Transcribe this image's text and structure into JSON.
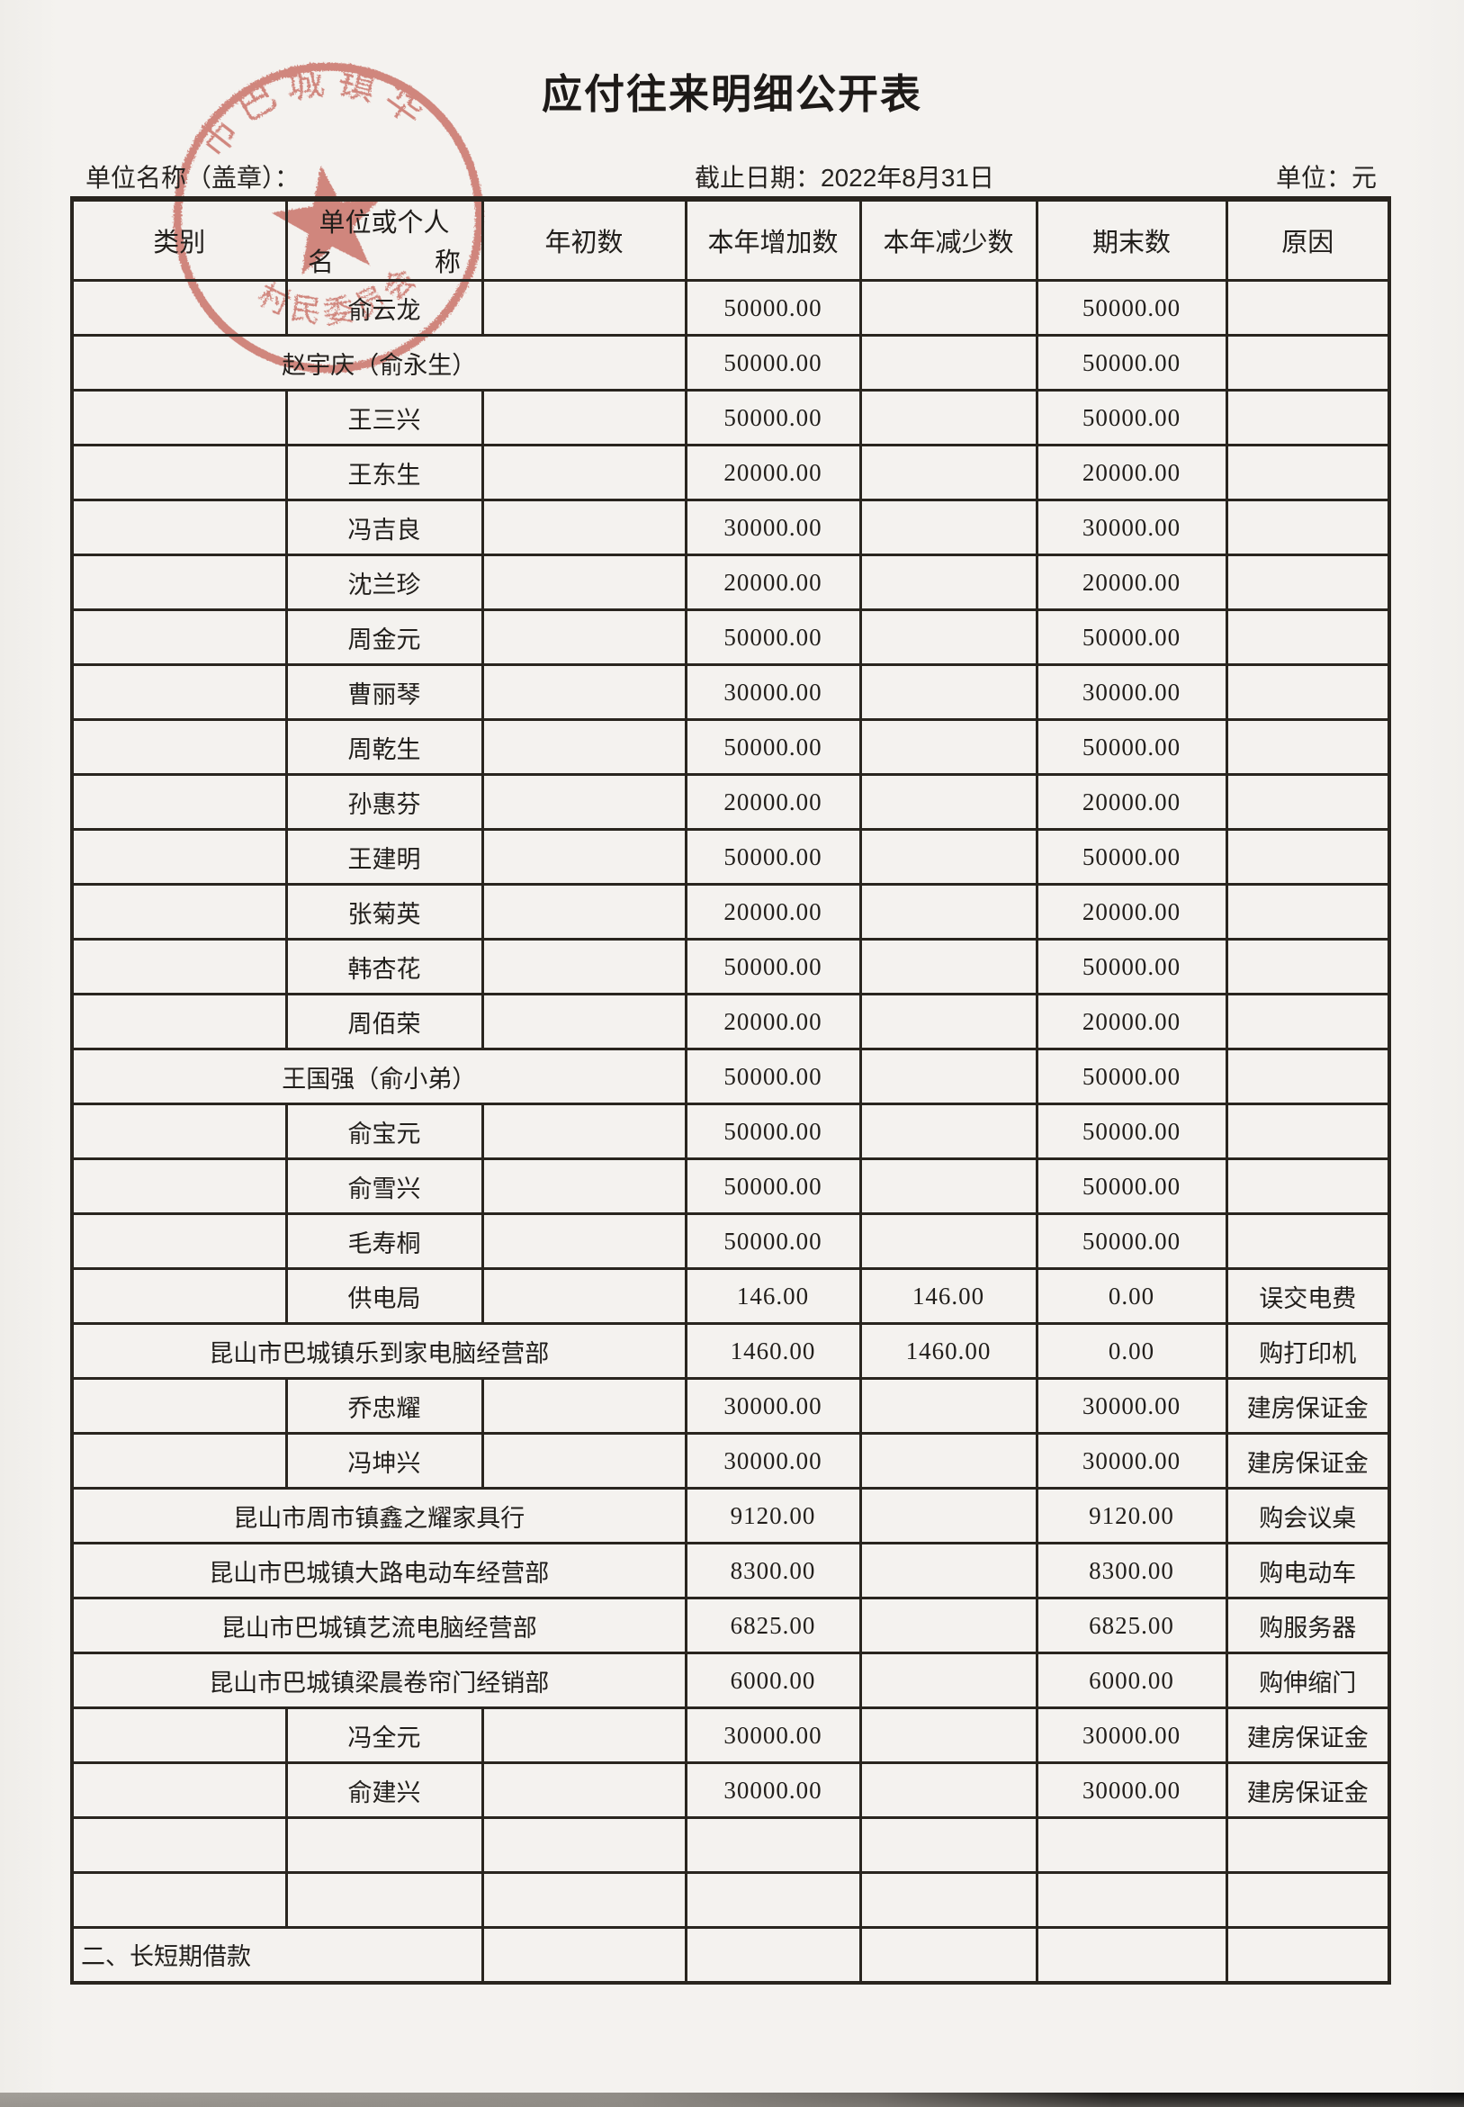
{
  "document": {
    "title": "应付往来明细公开表",
    "unit_name_label": "单位名称（盖章）：",
    "cutoff_date_label": "截止日期：2022年8月31日",
    "currency_label": "单位：元"
  },
  "stamp": {
    "top_arc_text": "市巴城镇华",
    "bottom_arc_text": "村民委员会",
    "color": "#c3473a"
  },
  "table": {
    "header": {
      "col_category": "类别",
      "col_name_line1": "单位或个人",
      "col_name_line2_left": "名",
      "col_name_line2_right": "称",
      "col_begin": "年初数",
      "col_increase": "本年增加数",
      "col_decrease": "本年减少数",
      "col_end": "期末数",
      "col_reason": "原因"
    },
    "rows": [
      {
        "name": "俞云龙",
        "merged": false,
        "begin": "",
        "increase": "50000.00",
        "decrease": "",
        "ending": "50000.00",
        "reason": ""
      },
      {
        "name": "赵宇庆（俞永生）",
        "merged": true,
        "increase": "50000.00",
        "decrease": "",
        "ending": "50000.00",
        "reason": ""
      },
      {
        "name": "王三兴",
        "merged": false,
        "begin": "",
        "increase": "50000.00",
        "decrease": "",
        "ending": "50000.00",
        "reason": ""
      },
      {
        "name": "王东生",
        "merged": false,
        "begin": "",
        "increase": "20000.00",
        "decrease": "",
        "ending": "20000.00",
        "reason": ""
      },
      {
        "name": "冯吉良",
        "merged": false,
        "begin": "",
        "increase": "30000.00",
        "decrease": "",
        "ending": "30000.00",
        "reason": ""
      },
      {
        "name": "沈兰珍",
        "merged": false,
        "begin": "",
        "increase": "20000.00",
        "decrease": "",
        "ending": "20000.00",
        "reason": ""
      },
      {
        "name": "周金元",
        "merged": false,
        "begin": "",
        "increase": "50000.00",
        "decrease": "",
        "ending": "50000.00",
        "reason": ""
      },
      {
        "name": "曹丽琴",
        "merged": false,
        "begin": "",
        "increase": "30000.00",
        "decrease": "",
        "ending": "30000.00",
        "reason": ""
      },
      {
        "name": "周乾生",
        "merged": false,
        "begin": "",
        "increase": "50000.00",
        "decrease": "",
        "ending": "50000.00",
        "reason": ""
      },
      {
        "name": "孙惠芬",
        "merged": false,
        "begin": "",
        "increase": "20000.00",
        "decrease": "",
        "ending": "20000.00",
        "reason": ""
      },
      {
        "name": "王建明",
        "merged": false,
        "begin": "",
        "increase": "50000.00",
        "decrease": "",
        "ending": "50000.00",
        "reason": ""
      },
      {
        "name": "张菊英",
        "merged": false,
        "begin": "",
        "increase": "20000.00",
        "decrease": "",
        "ending": "20000.00",
        "reason": ""
      },
      {
        "name": "韩杏花",
        "merged": false,
        "begin": "",
        "increase": "50000.00",
        "decrease": "",
        "ending": "50000.00",
        "reason": ""
      },
      {
        "name": "周佰荣",
        "merged": false,
        "begin": "",
        "increase": "20000.00",
        "decrease": "",
        "ending": "20000.00",
        "reason": ""
      },
      {
        "name": "王国强（俞小弟）",
        "merged": true,
        "increase": "50000.00",
        "decrease": "",
        "ending": "50000.00",
        "reason": ""
      },
      {
        "name": "俞宝元",
        "merged": false,
        "begin": "",
        "increase": "50000.00",
        "decrease": "",
        "ending": "50000.00",
        "reason": ""
      },
      {
        "name": "俞雪兴",
        "merged": false,
        "begin": "",
        "increase": "50000.00",
        "decrease": "",
        "ending": "50000.00",
        "reason": ""
      },
      {
        "name": "毛寿桐",
        "merged": false,
        "begin": "",
        "increase": "50000.00",
        "decrease": "",
        "ending": "50000.00",
        "reason": ""
      },
      {
        "name": "供电局",
        "merged": false,
        "begin": "",
        "increase": "146.00",
        "decrease": "146.00",
        "ending": "0.00",
        "reason": "误交电费"
      },
      {
        "name": "昆山市巴城镇乐到家电脑经营部",
        "merged": true,
        "increase": "1460.00",
        "decrease": "1460.00",
        "ending": "0.00",
        "reason": "购打印机"
      },
      {
        "name": "乔忠耀",
        "merged": false,
        "begin": "",
        "increase": "30000.00",
        "decrease": "",
        "ending": "30000.00",
        "reason": "建房保证金"
      },
      {
        "name": "冯坤兴",
        "merged": false,
        "begin": "",
        "increase": "30000.00",
        "decrease": "",
        "ending": "30000.00",
        "reason": "建房保证金"
      },
      {
        "name": "昆山市周市镇鑫之耀家具行",
        "merged": true,
        "increase": "9120.00",
        "decrease": "",
        "ending": "9120.00",
        "reason": "购会议桌"
      },
      {
        "name": "昆山市巴城镇大路电动车经营部",
        "merged": true,
        "increase": "8300.00",
        "decrease": "",
        "ending": "8300.00",
        "reason": "购电动车"
      },
      {
        "name": "昆山市巴城镇艺流电脑经营部",
        "merged": true,
        "increase": "6825.00",
        "decrease": "",
        "ending": "6825.00",
        "reason": "购服务器"
      },
      {
        "name": "昆山市巴城镇梁晨卷帘门经销部",
        "merged": true,
        "increase": "6000.00",
        "decrease": "",
        "ending": "6000.00",
        "reason": "购伸缩门"
      },
      {
        "name": "冯全元",
        "merged": false,
        "begin": "",
        "increase": "30000.00",
        "decrease": "",
        "ending": "30000.00",
        "reason": "建房保证金"
      },
      {
        "name": "俞建兴",
        "merged": false,
        "begin": "",
        "increase": "30000.00",
        "decrease": "",
        "ending": "30000.00",
        "reason": "建房保证金"
      },
      {
        "name": "",
        "merged": false,
        "begin": "",
        "increase": "",
        "decrease": "",
        "ending": "",
        "reason": ""
      },
      {
        "name": "",
        "merged": false,
        "begin": "",
        "increase": "",
        "decrease": "",
        "ending": "",
        "reason": ""
      },
      {
        "name": "二、长短期借款",
        "section": true,
        "begin": "",
        "increase": "",
        "decrease": "",
        "ending": "",
        "reason": ""
      }
    ]
  }
}
